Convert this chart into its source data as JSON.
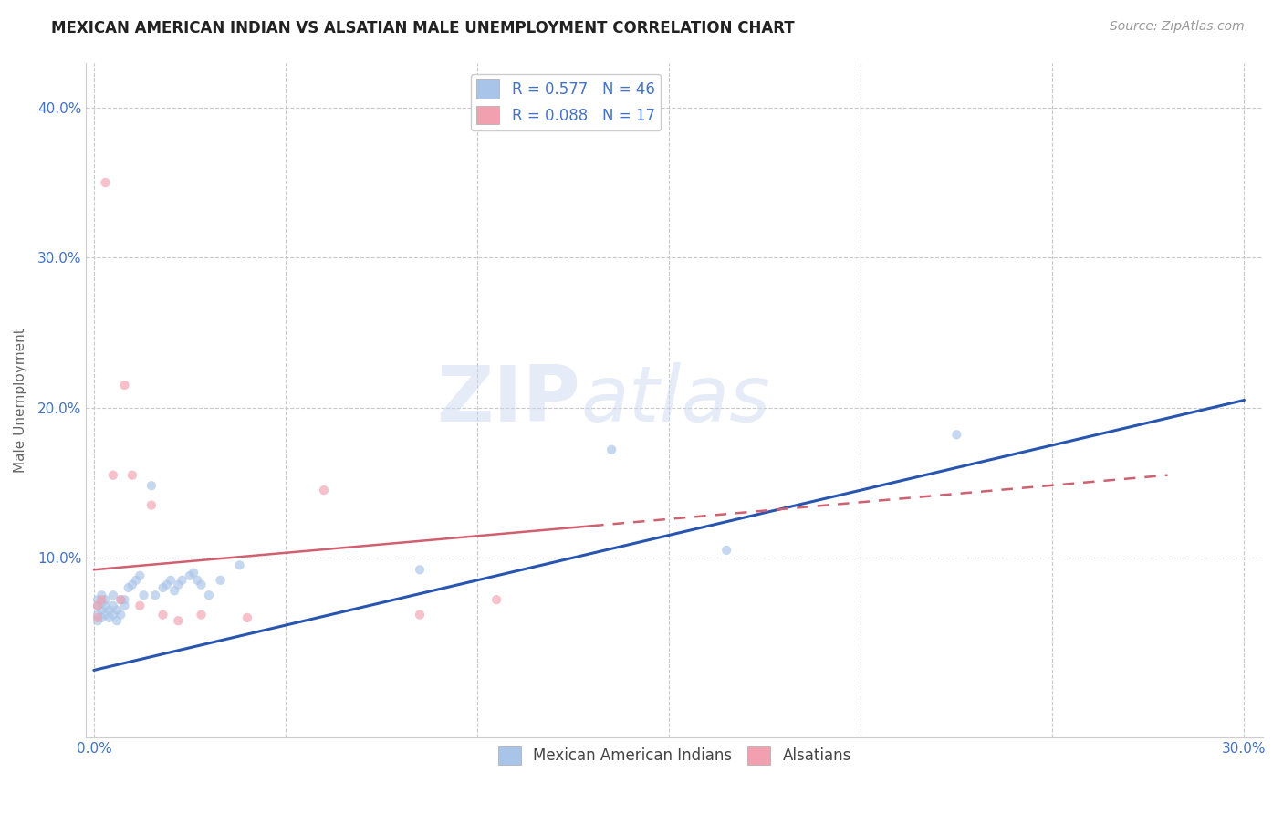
{
  "title": "MEXICAN AMERICAN INDIAN VS ALSATIAN MALE UNEMPLOYMENT CORRELATION CHART",
  "source": "Source: ZipAtlas.com",
  "ylabel": "Male Unemployment",
  "xlim": [
    -0.002,
    0.305
  ],
  "ylim": [
    -0.02,
    0.43
  ],
  "xticks": [
    0.0,
    0.3
  ],
  "xticklabels": [
    "0.0%",
    "30.0%"
  ],
  "yticks": [
    0.1,
    0.2,
    0.3,
    0.4
  ],
  "yticklabels": [
    "10.0%",
    "20.0%",
    "30.0%",
    "40.0%"
  ],
  "blue_R": 0.577,
  "blue_N": 46,
  "pink_R": 0.088,
  "pink_N": 17,
  "blue_color": "#a8c4e8",
  "pink_color": "#f2a0b0",
  "trendline_blue": "#2855b0",
  "trendline_pink": "#d06070",
  "watermark_zip": "ZIP",
  "watermark_atlas": "atlas",
  "blue_scatter_x": [
    0.001,
    0.001,
    0.001,
    0.001,
    0.002,
    0.002,
    0.002,
    0.002,
    0.003,
    0.003,
    0.003,
    0.004,
    0.004,
    0.005,
    0.005,
    0.005,
    0.006,
    0.006,
    0.007,
    0.007,
    0.008,
    0.008,
    0.009,
    0.01,
    0.011,
    0.012,
    0.013,
    0.015,
    0.016,
    0.018,
    0.019,
    0.02,
    0.021,
    0.022,
    0.023,
    0.025,
    0.026,
    0.027,
    0.028,
    0.03,
    0.033,
    0.038,
    0.085,
    0.135,
    0.165,
    0.225
  ],
  "blue_scatter_y": [
    0.058,
    0.062,
    0.068,
    0.072,
    0.06,
    0.065,
    0.07,
    0.075,
    0.062,
    0.068,
    0.072,
    0.06,
    0.065,
    0.062,
    0.068,
    0.075,
    0.058,
    0.065,
    0.062,
    0.072,
    0.068,
    0.072,
    0.08,
    0.082,
    0.085,
    0.088,
    0.075,
    0.148,
    0.075,
    0.08,
    0.082,
    0.085,
    0.078,
    0.082,
    0.085,
    0.088,
    0.09,
    0.085,
    0.082,
    0.075,
    0.085,
    0.095,
    0.092,
    0.172,
    0.105,
    0.182
  ],
  "pink_scatter_x": [
    0.001,
    0.001,
    0.002,
    0.003,
    0.005,
    0.007,
    0.008,
    0.01,
    0.012,
    0.015,
    0.018,
    0.022,
    0.028,
    0.04,
    0.06,
    0.085,
    0.105
  ],
  "pink_scatter_y": [
    0.06,
    0.068,
    0.072,
    0.35,
    0.155,
    0.072,
    0.215,
    0.155,
    0.068,
    0.135,
    0.062,
    0.058,
    0.062,
    0.06,
    0.145,
    0.062,
    0.072
  ],
  "blue_trend_x0": 0.0,
  "blue_trend_y0": 0.025,
  "blue_trend_x1": 0.3,
  "blue_trend_y1": 0.205,
  "pink_trend_x0": 0.0,
  "pink_trend_y0": 0.092,
  "pink_trend_x1": 0.28,
  "pink_trend_y1": 0.155,
  "title_fontsize": 12,
  "source_fontsize": 10,
  "axis_label_fontsize": 11,
  "tick_fontsize": 11,
  "legend_fontsize": 12,
  "scatter_size": 55,
  "scatter_alpha": 0.65,
  "background_color": "#ffffff",
  "grid_color": "#c8c8c8",
  "tick_color": "#4472c4",
  "ylabel_color": "#666666"
}
